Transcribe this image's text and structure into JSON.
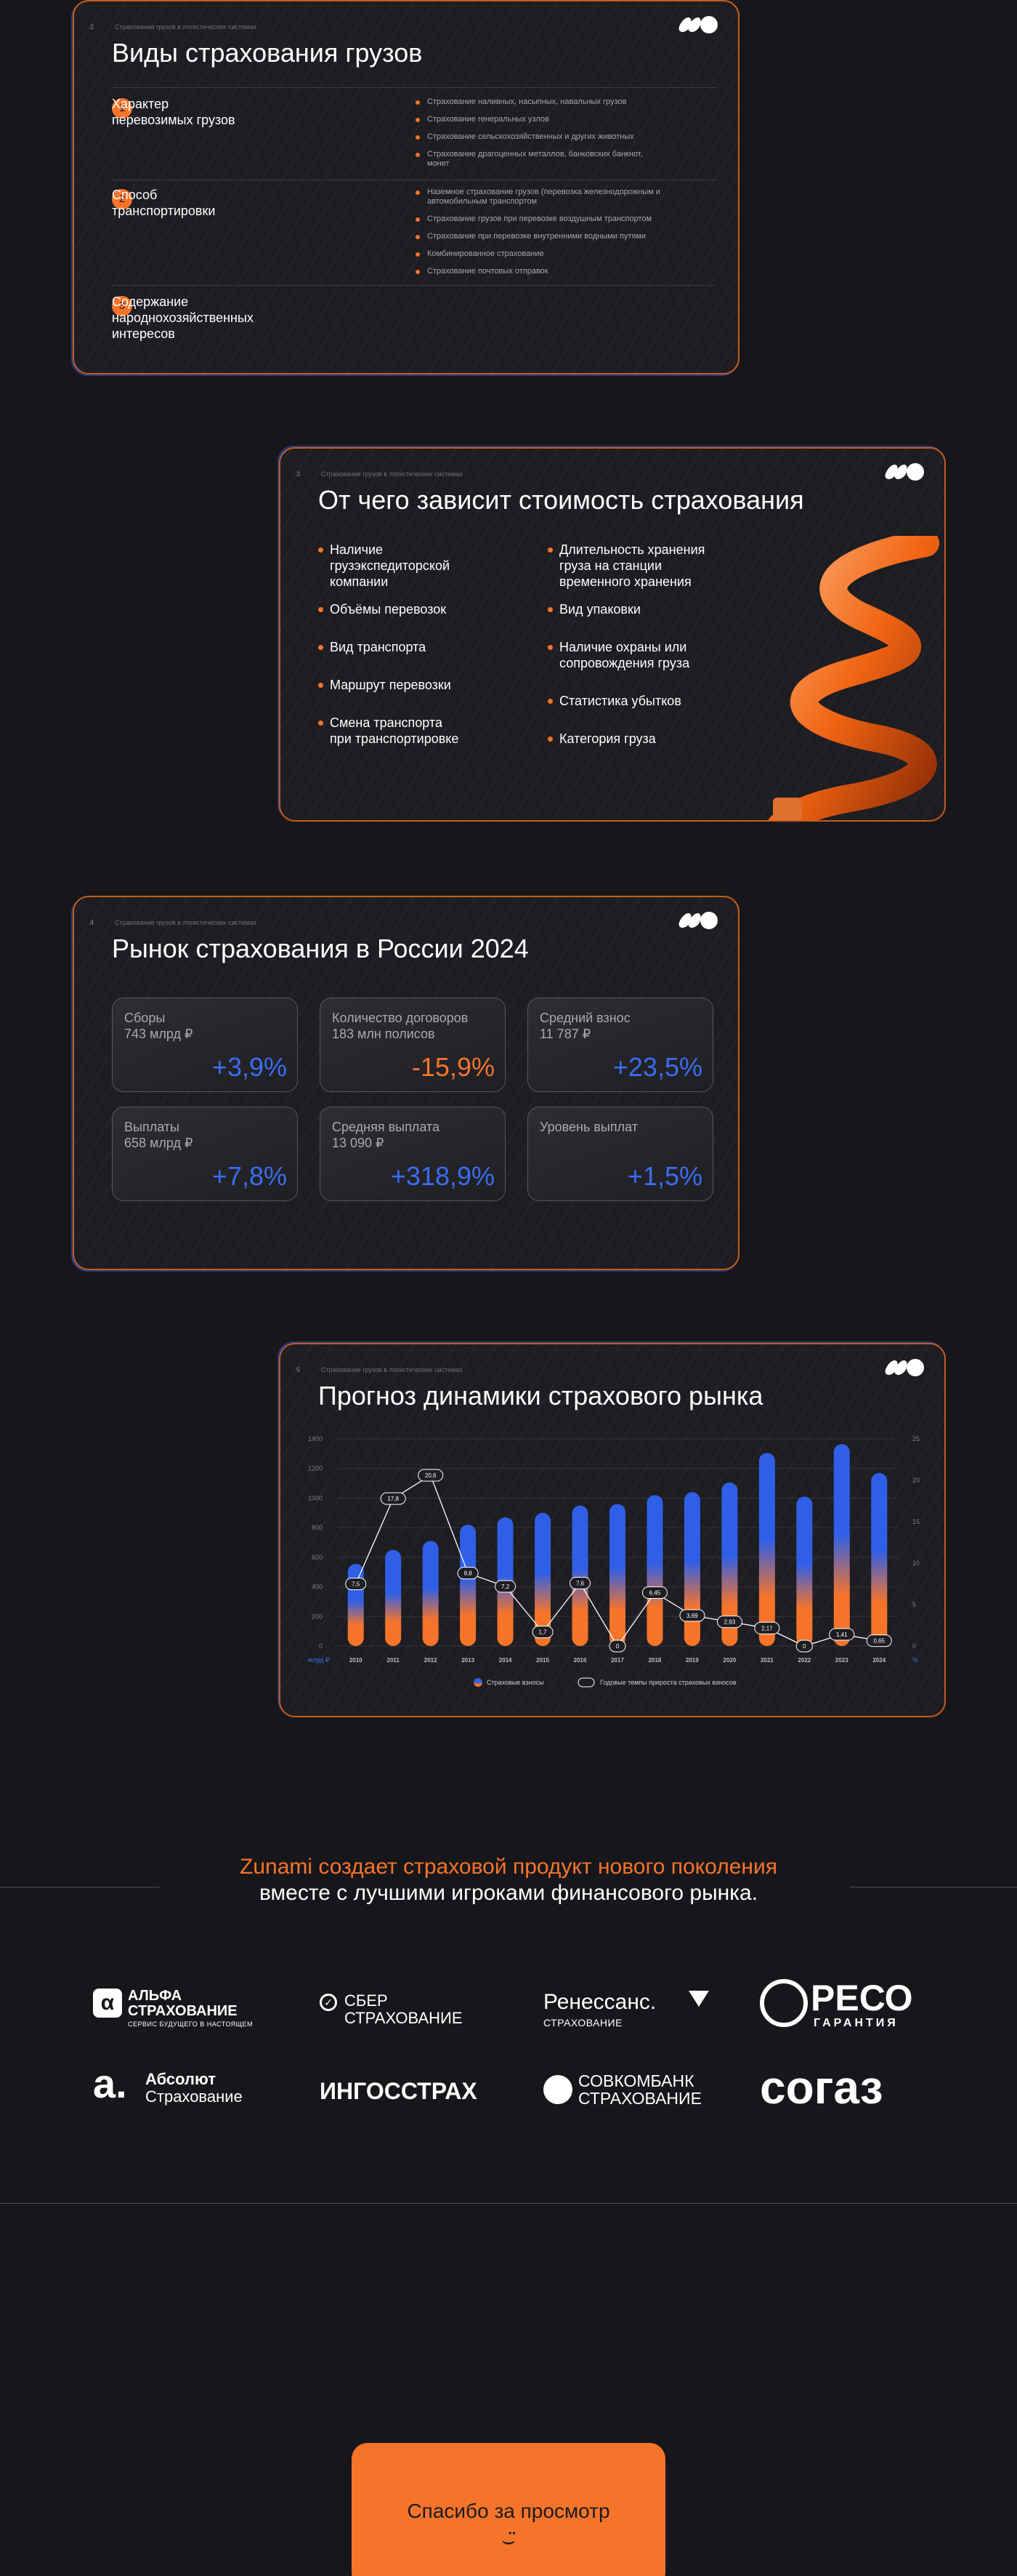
{
  "slide2": {
    "num": "2",
    "caption": "Страхование грузов в логистических системах",
    "title": "Виды страхования грузов",
    "rows": [
      {
        "badge": "1",
        "title": "Характер\nперевозимых грузов",
        "items": [
          "Страхование наливных, насыпных, навальных грузов",
          "Страхование генеральных узлов",
          "Страхование сельскохозяйственных и других животных",
          "Страхование драгоценных металлов, банковских банкнот, монет"
        ]
      },
      {
        "badge": "2",
        "title": "Способ\nтранспортировки",
        "items": [
          "Наземное страхование грузов (перевозка железнодорожным и автомобильным транспортом",
          "Страхование грузов при перевозке воздушным транспортом",
          "Страхование при перевозке внутренними водными путями",
          "Комбинированное страхование",
          "Страхование почтовых отправок"
        ]
      },
      {
        "badge": "3",
        "title": "Содержание\nнароднохозяйственных\nинтересов",
        "items": []
      }
    ]
  },
  "slide3": {
    "num": "3",
    "caption": "Страхование грузов в логистических системах",
    "title": "От чего зависит стоимость страхования",
    "col1": [
      "Наличие\nгрузэкспедиторской\nкомпании",
      "Объёмы перевозок",
      "Вид транспорта",
      "Маршрут перевозки",
      "Смена транспорта\nпри транспортировке"
    ],
    "col2": [
      "Длительность хранения\nгруза на станции\nвременного хранения",
      "Вид упаковки",
      "Наличие охраны или\nсопровождения груза",
      "Статистика убытков",
      "Категория груза"
    ]
  },
  "slide4": {
    "num": "4",
    "caption": "Страхование грузов в логистических системах",
    "title": "Рынок страхования в России 2024",
    "cards": [
      {
        "label": "Сборы\n743 млрд ₽",
        "value": "+3,9%",
        "color": "blue"
      },
      {
        "label": "Количество договоров\n183 млн полисов",
        "value": "-15,9%",
        "color": "orange"
      },
      {
        "label": "Средний взнос\n11 787 ₽",
        "value": "+23,5%",
        "color": "blue"
      },
      {
        "label": "Выплаты\n658 млрд ₽",
        "value": "+7,8%",
        "color": "blue"
      },
      {
        "label": "Средняя выплата\n13 090 ₽",
        "value": "+318,9%",
        "color": "blue"
      },
      {
        "label": "Уровень выплат",
        "value": "+1,5%",
        "color": "blue"
      }
    ]
  },
  "slide5": {
    "num": "5",
    "caption": "Страхование грузов в логистических системах",
    "title": "Прогноз динамики страхового рынка"
  },
  "chart_data": {
    "type": "bar",
    "categories": [
      "2010",
      "2011",
      "2012",
      "2013",
      "2014",
      "2015",
      "2016",
      "2017",
      "2018",
      "2019",
      "2020",
      "2021",
      "2022",
      "2023",
      "2024"
    ],
    "series": [
      {
        "name": "Страховые взносы",
        "type": "bar",
        "axis": "left",
        "values": [
          555,
          650,
          710,
          820,
          870,
          900,
          950,
          960,
          1020,
          1040,
          1105,
          1305,
          1010,
          1365,
          1170
        ]
      },
      {
        "name": "Годовые темпы прироста страховых взносов",
        "type": "line",
        "axis": "right",
        "values": [
          7.5,
          17.8,
          20.6,
          8.8,
          7.2,
          1.7,
          7.6,
          0,
          6.45,
          3.69,
          2.93,
          2.17,
          0,
          1.41,
          0.65
        ],
        "labels": [
          "7,5",
          "17,8",
          "20,6",
          "8,8",
          "7,2",
          "1,7",
          "7,6",
          "0",
          "6,45",
          "3,69",
          "2,93",
          "2,17",
          "0",
          "1,41",
          "0,65"
        ]
      }
    ],
    "yleft": {
      "ticks": [
        0,
        200,
        400,
        600,
        800,
        1000,
        1200,
        1400
      ],
      "label": "млрд ₽",
      "ylim": [
        0,
        1400
      ]
    },
    "yright": {
      "ticks": [
        0,
        5,
        10,
        15,
        20,
        25
      ],
      "label": "%",
      "ylim": [
        0,
        25
      ]
    },
    "grid": true,
    "legend": "bottom",
    "colors": {
      "bar_top": "#2f5fe6",
      "bar_bottom": "#f6742a",
      "line": "#ffffff",
      "label_bg": "#1d1d22"
    }
  },
  "partners": {
    "tagline_accent": "Zunami создает страховой продукт нового поколения",
    "tagline_rest": "вместе с лучшими игроками финансового рынка.",
    "logos": [
      {
        "name": "alfa",
        "line1": "АЛЬФА",
        "line2": "СТРАХОВАНИЕ",
        "sub": "СЕРВИС БУДУЩЕГО В НАСТОЯЩЕМ"
      },
      {
        "name": "sber",
        "line1": "СБЕР",
        "line2": "СТРАХОВАНИЕ"
      },
      {
        "name": "renessans",
        "line1": "Ренессанс.",
        "line2": "СТРАХОВАНИЕ"
      },
      {
        "name": "reso",
        "line1": "РЕСО",
        "line2": "ГАРАНТИЯ"
      },
      {
        "name": "absolut",
        "line1": "Абсолют",
        "line2": "Страхование"
      },
      {
        "name": "ingosstrakh",
        "line1": "ИНГОССТРАХ"
      },
      {
        "name": "sovcombank",
        "line1": "СОВКОМБАНК",
        "line2": "СТРАХОВАНИЕ"
      },
      {
        "name": "sogaz",
        "line1": "согаз"
      }
    ]
  },
  "thanks": {
    "text": "Спасибо за просмотр",
    "smile": "⌣̈"
  },
  "colors": {
    "accent": "#f6742a",
    "blue": "#2f5fe6",
    "background": "#17171b"
  }
}
